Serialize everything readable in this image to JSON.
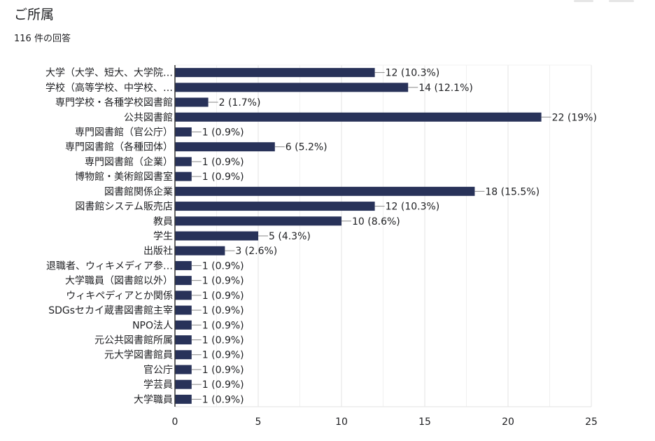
{
  "header": {
    "title": "ご所属",
    "response_count": "116 件の回答"
  },
  "colors": {
    "bar": "#283259",
    "grid": "#e8e8e8",
    "axis": "#9e9e9e",
    "text": "#202124"
  },
  "chart_data": {
    "type": "bar",
    "orientation": "horizontal",
    "title": "",
    "xlabel": "",
    "ylabel": "",
    "xlim": [
      0,
      25
    ],
    "xticks": [
      0,
      5,
      10,
      15,
      20,
      25
    ],
    "grid": true,
    "legend": "none",
    "categories": [
      "大学（大学、短大、大学院…",
      "学校（高等学校、中学校、…",
      "専門学校・各種学校図書館",
      "公共図書館",
      "専門図書館（官公庁）",
      "専門図書館（各種団体）",
      "専門図書館（企業）",
      "博物館・美術館図書室",
      "図書館関係企業",
      "図書館システム販売店",
      "教員",
      "学生",
      "出版社",
      "退職者、ウィキメディア参…",
      "大学職員（図書館以外）",
      "ウィキペディアとか関係",
      "SDGsセカイ蔵書図書館主宰",
      "NPO法人",
      "元公共図書館所属",
      "元大学図書館員",
      "官公庁",
      "学芸員",
      "大学職員"
    ],
    "values": [
      12,
      14,
      2,
      22,
      1,
      6,
      1,
      1,
      18,
      12,
      10,
      5,
      3,
      1,
      1,
      1,
      1,
      1,
      1,
      1,
      1,
      1,
      1
    ],
    "data_labels": [
      "12 (10.3%)",
      "14 (12.1%)",
      "2 (1.7%)",
      "22 (19%)",
      "1 (0.9%)",
      "6 (5.2%)",
      "1 (0.9%)",
      "1 (0.9%)",
      "18 (15.5%)",
      "12 (10.3%)",
      "10 (8.6%)",
      "5 (4.3%)",
      "3 (2.6%)",
      "1 (0.9%)",
      "1 (0.9%)",
      "1 (0.9%)",
      "1 (0.9%)",
      "1 (0.9%)",
      "1 (0.9%)",
      "1 (0.9%)",
      "1 (0.9%)",
      "1 (0.9%)",
      "1 (0.9%)"
    ]
  }
}
